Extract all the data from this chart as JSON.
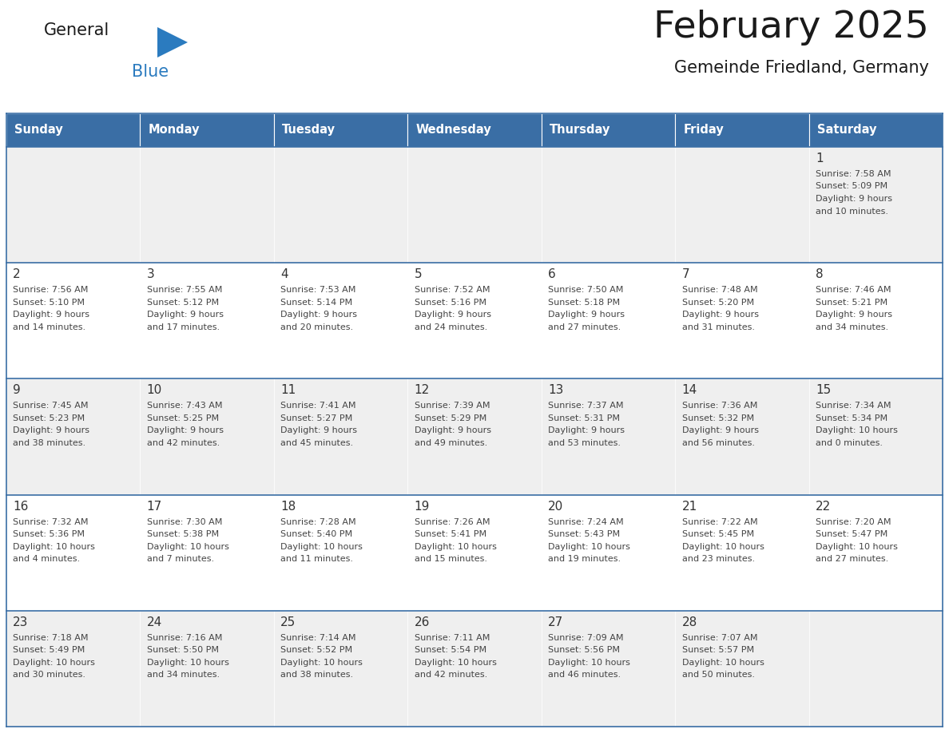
{
  "title": "February 2025",
  "subtitle": "Gemeinde Friedland, Germany",
  "days_of_week": [
    "Sunday",
    "Monday",
    "Tuesday",
    "Wednesday",
    "Thursday",
    "Friday",
    "Saturday"
  ],
  "header_bg": "#3A6EA5",
  "header_text": "#FFFFFF",
  "cell_bg_light": "#EFEFEF",
  "cell_bg_white": "#FFFFFF",
  "cell_border": "#3A6EA5",
  "day_number_color": "#333333",
  "text_color": "#444444",
  "title_color": "#1A1A1A",
  "logo_general_color": "#1A1A1A",
  "logo_blue_color": "#2B7BBF",
  "calendar_data": [
    [
      null,
      null,
      null,
      null,
      null,
      null,
      {
        "day": 1,
        "sunrise": "7:58 AM",
        "sunset": "5:09 PM",
        "daylight_h": "9 hours",
        "daylight_m": "and 10 minutes."
      }
    ],
    [
      {
        "day": 2,
        "sunrise": "7:56 AM",
        "sunset": "5:10 PM",
        "daylight_h": "9 hours",
        "daylight_m": "and 14 minutes."
      },
      {
        "day": 3,
        "sunrise": "7:55 AM",
        "sunset": "5:12 PM",
        "daylight_h": "9 hours",
        "daylight_m": "and 17 minutes."
      },
      {
        "day": 4,
        "sunrise": "7:53 AM",
        "sunset": "5:14 PM",
        "daylight_h": "9 hours",
        "daylight_m": "and 20 minutes."
      },
      {
        "day": 5,
        "sunrise": "7:52 AM",
        "sunset": "5:16 PM",
        "daylight_h": "9 hours",
        "daylight_m": "and 24 minutes."
      },
      {
        "day": 6,
        "sunrise": "7:50 AM",
        "sunset": "5:18 PM",
        "daylight_h": "9 hours",
        "daylight_m": "and 27 minutes."
      },
      {
        "day": 7,
        "sunrise": "7:48 AM",
        "sunset": "5:20 PM",
        "daylight_h": "9 hours",
        "daylight_m": "and 31 minutes."
      },
      {
        "day": 8,
        "sunrise": "7:46 AM",
        "sunset": "5:21 PM",
        "daylight_h": "9 hours",
        "daylight_m": "and 34 minutes."
      }
    ],
    [
      {
        "day": 9,
        "sunrise": "7:45 AM",
        "sunset": "5:23 PM",
        "daylight_h": "9 hours",
        "daylight_m": "and 38 minutes."
      },
      {
        "day": 10,
        "sunrise": "7:43 AM",
        "sunset": "5:25 PM",
        "daylight_h": "9 hours",
        "daylight_m": "and 42 minutes."
      },
      {
        "day": 11,
        "sunrise": "7:41 AM",
        "sunset": "5:27 PM",
        "daylight_h": "9 hours",
        "daylight_m": "and 45 minutes."
      },
      {
        "day": 12,
        "sunrise": "7:39 AM",
        "sunset": "5:29 PM",
        "daylight_h": "9 hours",
        "daylight_m": "and 49 minutes."
      },
      {
        "day": 13,
        "sunrise": "7:37 AM",
        "sunset": "5:31 PM",
        "daylight_h": "9 hours",
        "daylight_m": "and 53 minutes."
      },
      {
        "day": 14,
        "sunrise": "7:36 AM",
        "sunset": "5:32 PM",
        "daylight_h": "9 hours",
        "daylight_m": "and 56 minutes."
      },
      {
        "day": 15,
        "sunrise": "7:34 AM",
        "sunset": "5:34 PM",
        "daylight_h": "10 hours",
        "daylight_m": "and 0 minutes."
      }
    ],
    [
      {
        "day": 16,
        "sunrise": "7:32 AM",
        "sunset": "5:36 PM",
        "daylight_h": "10 hours",
        "daylight_m": "and 4 minutes."
      },
      {
        "day": 17,
        "sunrise": "7:30 AM",
        "sunset": "5:38 PM",
        "daylight_h": "10 hours",
        "daylight_m": "and 7 minutes."
      },
      {
        "day": 18,
        "sunrise": "7:28 AM",
        "sunset": "5:40 PM",
        "daylight_h": "10 hours",
        "daylight_m": "and 11 minutes."
      },
      {
        "day": 19,
        "sunrise": "7:26 AM",
        "sunset": "5:41 PM",
        "daylight_h": "10 hours",
        "daylight_m": "and 15 minutes."
      },
      {
        "day": 20,
        "sunrise": "7:24 AM",
        "sunset": "5:43 PM",
        "daylight_h": "10 hours",
        "daylight_m": "and 19 minutes."
      },
      {
        "day": 21,
        "sunrise": "7:22 AM",
        "sunset": "5:45 PM",
        "daylight_h": "10 hours",
        "daylight_m": "and 23 minutes."
      },
      {
        "day": 22,
        "sunrise": "7:20 AM",
        "sunset": "5:47 PM",
        "daylight_h": "10 hours",
        "daylight_m": "and 27 minutes."
      }
    ],
    [
      {
        "day": 23,
        "sunrise": "7:18 AM",
        "sunset": "5:49 PM",
        "daylight_h": "10 hours",
        "daylight_m": "and 30 minutes."
      },
      {
        "day": 24,
        "sunrise": "7:16 AM",
        "sunset": "5:50 PM",
        "daylight_h": "10 hours",
        "daylight_m": "and 34 minutes."
      },
      {
        "day": 25,
        "sunrise": "7:14 AM",
        "sunset": "5:52 PM",
        "daylight_h": "10 hours",
        "daylight_m": "and 38 minutes."
      },
      {
        "day": 26,
        "sunrise": "7:11 AM",
        "sunset": "5:54 PM",
        "daylight_h": "10 hours",
        "daylight_m": "and 42 minutes."
      },
      {
        "day": 27,
        "sunrise": "7:09 AM",
        "sunset": "5:56 PM",
        "daylight_h": "10 hours",
        "daylight_m": "and 46 minutes."
      },
      {
        "day": 28,
        "sunrise": "7:07 AM",
        "sunset": "5:57 PM",
        "daylight_h": "10 hours",
        "daylight_m": "and 50 minutes."
      },
      null
    ]
  ],
  "row_bg_colors": [
    "#EFEFEF",
    "#FFFFFF",
    "#EFEFEF",
    "#FFFFFF",
    "#EFEFEF"
  ]
}
